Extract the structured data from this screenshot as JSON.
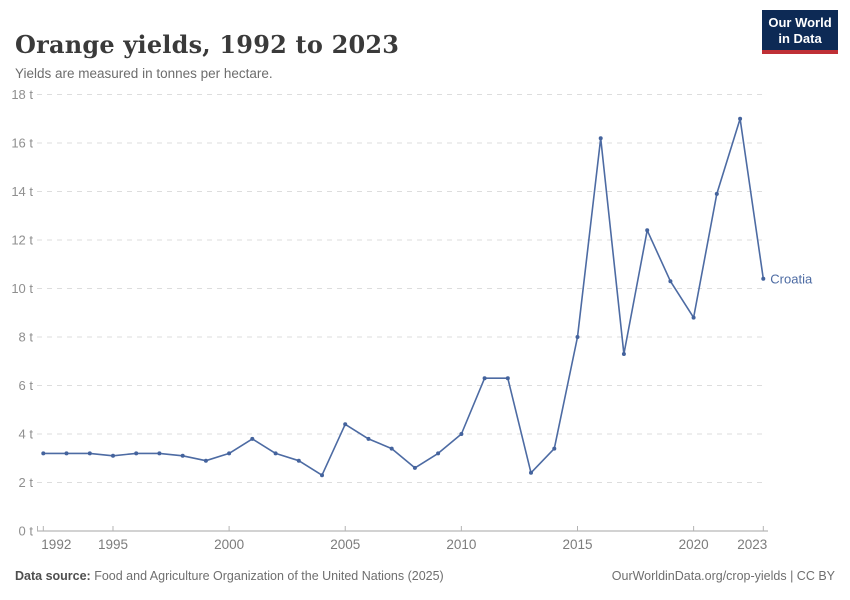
{
  "header": {
    "title": "Orange yields, 1992 to 2023",
    "subtitle": "Yields are measured in tonnes per hectare.",
    "logo": {
      "line1": "Our World",
      "line2": "in Data"
    }
  },
  "chart_data": {
    "type": "line",
    "title": "Orange yields, 1992 to 2023",
    "subtitle": "Yields are measured in tonnes per hectare.",
    "unit": "tonnes per hectare",
    "y_tick_suffix": " t",
    "x": [
      1992,
      1993,
      1994,
      1995,
      1996,
      1997,
      1998,
      1999,
      2000,
      2001,
      2002,
      2003,
      2004,
      2005,
      2006,
      2007,
      2008,
      2009,
      2010,
      2011,
      2012,
      2013,
      2014,
      2015,
      2016,
      2017,
      2018,
      2019,
      2020,
      2021,
      2022,
      2023
    ],
    "series": [
      {
        "name": "Croatia",
        "values": [
          3.2,
          3.2,
          3.2,
          3.1,
          3.2,
          3.2,
          3.1,
          2.9,
          3.2,
          3.8,
          3.2,
          2.9,
          2.3,
          4.4,
          3.8,
          3.4,
          2.6,
          3.2,
          4.0,
          6.3,
          6.3,
          2.4,
          3.4,
          8.0,
          16.2,
          7.3,
          12.4,
          10.3,
          8.8,
          13.9,
          17.0,
          10.4
        ]
      }
    ],
    "xlim": [
      1992,
      2023
    ],
    "ylim": [
      0,
      18
    ],
    "y_ticks": [
      0,
      2,
      4,
      6,
      8,
      10,
      12,
      14,
      16,
      18
    ],
    "x_ticks": [
      1992,
      1995,
      2000,
      2005,
      2010,
      2015,
      2020,
      2023
    ],
    "grid": true,
    "grid_style": "dashed",
    "legend_position": "end-of-line"
  },
  "footer": {
    "source_label": "Data source:",
    "source_text": " Food and Agriculture Organization of the United Nations (2025)",
    "link_text": "OurWorldinData.org/crop-yields | CC BY"
  },
  "colors": {
    "line": "#4d6ba3",
    "marker": "#44639d",
    "entity_label": "#4d6ba3",
    "grid": "#dddddd",
    "axis": "#a5a5a5",
    "tick": "#b3b3b3",
    "y_tick_label": "#8f8f8f",
    "x_tick_label": "#7c7c7c",
    "logo_bg": "#0d2a55",
    "logo_accent": "#bf3036"
  }
}
